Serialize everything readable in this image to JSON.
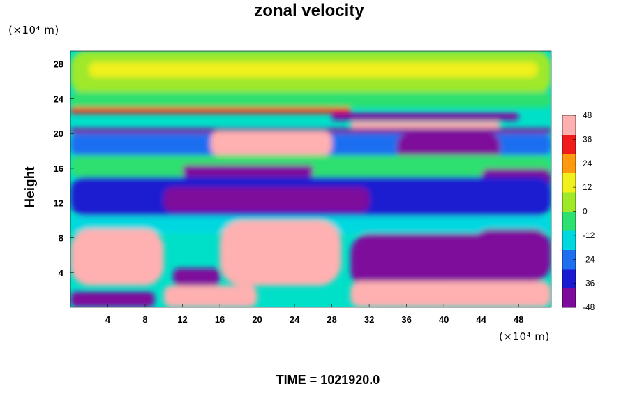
{
  "chart_data": {
    "type": "heatmap",
    "title": "zonal velocity",
    "ylabel": "Height",
    "y_units": "(×10⁴ m)",
    "x_units": "(×10⁴ m)",
    "xlim": [
      0,
      51.5
    ],
    "ylim": [
      0,
      29.5
    ],
    "x_ticks": [
      4,
      8,
      12,
      16,
      20,
      24,
      28,
      32,
      36,
      40,
      44,
      48
    ],
    "y_ticks": [
      4,
      8,
      12,
      16,
      20,
      24,
      28
    ],
    "colorbar": {
      "min": -48,
      "max": 48,
      "ticks": [
        48,
        36,
        24,
        12,
        0,
        -12,
        -24,
        -36,
        -48
      ],
      "colors": [
        "#7e0a9c",
        "#1a1ad0",
        "#1f6ef0",
        "#00d8e0",
        "#2ee070",
        "#9fe82a",
        "#f0f01c",
        "#ff9a10",
        "#f01c1c",
        "#ffb0b0"
      ]
    },
    "regions": [
      {
        "value": 5,
        "x": [
          0,
          51.5
        ],
        "y": [
          24.5,
          29.5
        ]
      },
      {
        "value": 14,
        "x": [
          2,
          50
        ],
        "y": [
          26.5,
          28.2
        ]
      },
      {
        "value": -8,
        "x": [
          0,
          51.5
        ],
        "y": [
          23.0,
          24.8
        ]
      },
      {
        "value": 35,
        "x": [
          0,
          30
        ],
        "y": [
          22.3,
          23.0
        ]
      },
      {
        "value": -48,
        "x": [
          28,
          48
        ],
        "y": [
          21.5,
          22.4
        ]
      },
      {
        "value": 48,
        "x": [
          30,
          46
        ],
        "y": [
          20.6,
          21.4
        ]
      },
      {
        "value": -48,
        "x": [
          0,
          51.5
        ],
        "y": [
          20.0,
          20.6
        ]
      },
      {
        "value": -20,
        "x": [
          0,
          51.5
        ],
        "y": [
          17.5,
          20.0
        ]
      },
      {
        "value": 48,
        "x": [
          15,
          28
        ],
        "y": [
          17.5,
          20.3
        ]
      },
      {
        "value": -48,
        "x": [
          35,
          46
        ],
        "y": [
          16.5,
          20.0
        ]
      },
      {
        "value": -5,
        "x": [
          0,
          51.5
        ],
        "y": [
          15.0,
          17.5
        ]
      },
      {
        "value": -48,
        "x": [
          12,
          26
        ],
        "y": [
          15.0,
          16.4
        ]
      },
      {
        "value": -48,
        "x": [
          44,
          51.5
        ],
        "y": [
          13.5,
          16.0
        ]
      },
      {
        "value": -35,
        "x": [
          0,
          51.5
        ],
        "y": [
          10.5,
          15.0
        ]
      },
      {
        "value": -48,
        "x": [
          10,
          32
        ],
        "y": [
          11.0,
          13.8
        ]
      },
      {
        "value": -10,
        "x": [
          0,
          51.5
        ],
        "y": [
          8.5,
          10.5
        ]
      },
      {
        "value": 48,
        "x": [
          0,
          10
        ],
        "y": [
          2.5,
          9.0
        ]
      },
      {
        "value": 48,
        "x": [
          16,
          29
        ],
        "y": [
          2.5,
          10.0
        ]
      },
      {
        "value": -40,
        "x": [
          30,
          50
        ],
        "y": [
          2.0,
          8.5
        ]
      },
      {
        "value": -48,
        "x": [
          43,
          51.5
        ],
        "y": [
          3.0,
          9.0
        ]
      },
      {
        "value": -48,
        "x": [
          11,
          16
        ],
        "y": [
          2.5,
          4.5
        ]
      },
      {
        "value": -48,
        "x": [
          0,
          9
        ],
        "y": [
          0,
          1.8
        ]
      },
      {
        "value": 48,
        "x": [
          10,
          20
        ],
        "y": [
          0,
          2.5
        ]
      },
      {
        "value": 48,
        "x": [
          30,
          51.5
        ],
        "y": [
          0,
          3.0
        ]
      }
    ]
  },
  "footer": {
    "time_label": "TIME = 1021920.0"
  }
}
